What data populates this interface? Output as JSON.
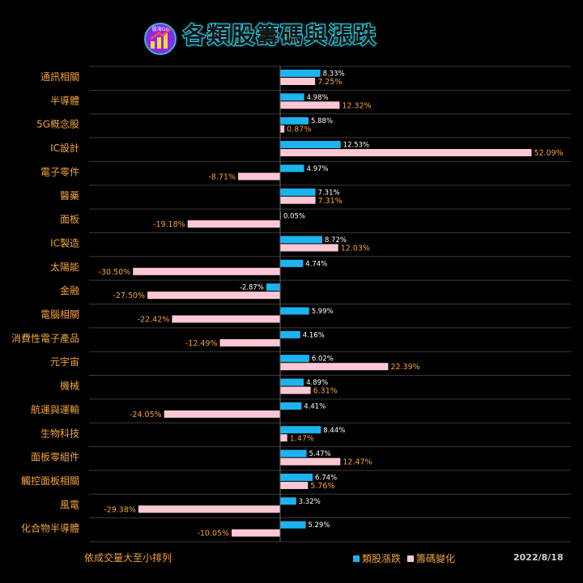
{
  "title": "各類股籌碼與漲跌",
  "logo": {
    "icon": "rising-arrow-logo-icon",
    "text": "股海Go",
    "colors": [
      "#8a2be2",
      "#f7d54a",
      "#2fb5e8"
    ]
  },
  "footnote": "依成交量大至小排列",
  "date": "2022/8/18",
  "colors": {
    "blue": "#1cb4f0",
    "pink": "#fdc8d4",
    "label": "#f2a33a",
    "title_stroke": "#2fd2e6"
  },
  "chart_data": {
    "type": "bar",
    "orientation": "horizontal",
    "categories": [
      "通訊相關",
      "半導體",
      "5G概念股",
      "IC設計",
      "電子零件",
      "醫藥",
      "面板",
      "IC製造",
      "太陽能",
      "金融",
      "電腦相關",
      "消費性電子產品",
      "元宇宙",
      "機械",
      "航運與運輸",
      "生物科技",
      "面板零組件",
      "觸控面板相關",
      "風電",
      "化合物半導體"
    ],
    "series": [
      {
        "name": "類股漲跌",
        "color": "#1cb4f0",
        "values": [
          8.33,
          4.98,
          5.88,
          12.53,
          4.97,
          7.31,
          0.05,
          8.72,
          4.74,
          -2.87,
          5.99,
          4.16,
          6.02,
          4.89,
          4.41,
          8.44,
          5.47,
          6.74,
          3.32,
          5.29
        ],
        "labels": [
          "8.33%",
          "4.98%",
          "5.88%",
          "12.53%",
          "4.97%",
          "7.31%",
          "0.05%",
          "8.72%",
          "4.74%",
          "-2.87%",
          "5.99%",
          "4.16%",
          "6.02%",
          "4.89%",
          "4.41%",
          "8.44%",
          "5.47%",
          "6.74%",
          "3.32%",
          "5.29%"
        ]
      },
      {
        "name": "籌碼變化",
        "color": "#fdc8d4",
        "values": [
          7.25,
          12.32,
          0.87,
          52.09,
          -8.71,
          7.31,
          -19.18,
          12.03,
          -30.5,
          -27.5,
          -22.42,
          -12.49,
          22.39,
          6.31,
          -24.05,
          1.47,
          12.47,
          5.76,
          -29.38,
          -10.05
        ],
        "labels": [
          "7.25%",
          "12.32%",
          "0.87%",
          "52.09%",
          "-8.71%",
          "7.31%",
          "-19.18%",
          "12.03%",
          "-30.50%",
          "-27.50%",
          "-22.42%",
          "-12.49%",
          "22.39%",
          "6.31%",
          "-24.05%",
          "1.47%",
          "12.47%",
          "5.76%",
          "-29.38%",
          "-10.05%"
        ]
      }
    ],
    "legend": "bottom",
    "grid": "horizontal"
  }
}
